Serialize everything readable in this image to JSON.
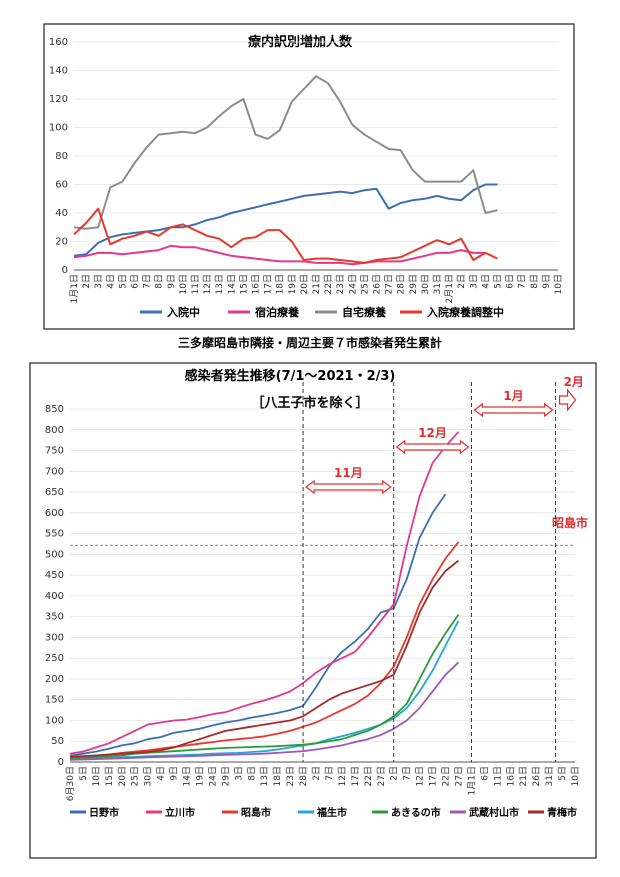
{
  "caption": "三多摩昭島市隣接・周辺主要７市感染者発生累計",
  "chart_data": [
    {
      "type": "line",
      "title": "療内訳別増加人数",
      "ylim": [
        0,
        160
      ],
      "yticks": [
        0,
        20,
        40,
        60,
        80,
        100,
        120,
        140,
        160
      ],
      "x": [
        "1月1日",
        "2日",
        "3日",
        "4日",
        "5日",
        "6日",
        "7日",
        "8日",
        "9日",
        "10日",
        "11日",
        "12日",
        "13日",
        "14日",
        "15日",
        "16日",
        "17日",
        "18日",
        "19日",
        "20日",
        "21日",
        "22日",
        "23日",
        "24日",
        "25日",
        "26日",
        "27日",
        "28日",
        "29日",
        "30日",
        "31日",
        "2月1日",
        "2日",
        "3日",
        "4日",
        "5日",
        "6日",
        "7日",
        "8日",
        "9日",
        "10日"
      ],
      "series": [
        {
          "name": "入院中",
          "color": "#3a6fb5",
          "values": [
            10,
            11,
            19,
            23,
            25,
            26,
            27,
            28,
            30,
            30,
            32,
            35,
            37,
            40,
            42,
            44,
            46,
            48,
            50,
            52,
            53,
            54,
            55,
            54,
            56,
            57,
            43,
            47,
            49,
            50,
            52,
            50,
            49,
            56,
            60,
            60,
            null,
            null,
            null,
            null,
            null
          ]
        },
        {
          "name": "宿泊療養",
          "color": "#e4388a",
          "values": [
            9,
            10,
            12,
            12,
            11,
            12,
            13,
            14,
            17,
            16,
            16,
            14,
            12,
            10,
            9,
            8,
            7,
            6,
            6,
            6,
            5,
            5,
            5,
            4,
            5,
            6,
            6,
            6,
            8,
            10,
            12,
            12,
            14,
            12,
            12,
            null,
            null,
            null,
            null,
            null,
            null
          ]
        },
        {
          "name": "自宅療養",
          "color": "#8c8c8c",
          "values": [
            30,
            29,
            30,
            58,
            62,
            75,
            86,
            95,
            96,
            97,
            96,
            100,
            108,
            115,
            120,
            95,
            92,
            98,
            118,
            127,
            136,
            131,
            118,
            102,
            95,
            90,
            85,
            84,
            70,
            62,
            62,
            62,
            62,
            70,
            40,
            42,
            null,
            null,
            null,
            null,
            null
          ]
        },
        {
          "name": "入院療養調整中",
          "color": "#e8372b",
          "values": [
            25,
            33,
            43,
            18,
            22,
            24,
            27,
            24,
            30,
            32,
            28,
            24,
            22,
            16,
            22,
            23,
            28,
            28,
            20,
            7,
            8,
            8,
            7,
            6,
            5,
            7,
            8,
            9,
            13,
            17,
            21,
            18,
            22,
            7,
            12,
            8,
            null,
            null,
            null,
            null,
            null
          ]
        }
      ]
    },
    {
      "type": "line",
      "title": "感染者発生推移(7/1～2021・2/3)",
      "subtitle": "［八王子市を除く］",
      "ylim": [
        0,
        850
      ],
      "yticks": [
        0,
        50,
        100,
        150,
        200,
        250,
        300,
        350,
        400,
        450,
        500,
        550,
        600,
        650,
        700,
        750,
        800,
        850
      ],
      "x": [
        "6月30日",
        "5日",
        "10日",
        "15日",
        "20日",
        "25日",
        "30日",
        "4日",
        "9日",
        "14日",
        "19日",
        "24日",
        "29日",
        "3日",
        "8日",
        "13日",
        "18日",
        "23日",
        "28日",
        "2日",
        "7日",
        "12日",
        "17日",
        "22日",
        "27日",
        "2日",
        "7日",
        "12日",
        "17日",
        "22日",
        "27日",
        "1月1日",
        "6日",
        "11日",
        "16日",
        "21日",
        "26日",
        "31日",
        "5日",
        "10日"
      ],
      "reference_line": {
        "value": 522,
        "label": "昭島市"
      },
      "periods": [
        "11月",
        "12月",
        "1月",
        "2月"
      ],
      "series": [
        {
          "name": "日野市",
          "color": "#3a6fb5",
          "values": [
            15,
            20,
            25,
            32,
            40,
            45,
            55,
            60,
            70,
            75,
            80,
            88,
            95,
            100,
            107,
            112,
            118,
            125,
            135,
            180,
            230,
            265,
            290,
            320,
            360,
            370,
            440,
            540,
            600,
            645,
            null,
            null,
            null,
            null,
            null,
            null,
            null,
            null,
            null,
            null
          ]
        },
        {
          "name": "立川市",
          "color": "#e4388a",
          "values": [
            20,
            25,
            35,
            45,
            60,
            75,
            90,
            95,
            100,
            102,
            108,
            115,
            120,
            130,
            140,
            148,
            158,
            170,
            190,
            215,
            235,
            250,
            265,
            300,
            340,
            380,
            520,
            640,
            720,
            760,
            795,
            null,
            null,
            null,
            null,
            null,
            null,
            null,
            null,
            null
          ]
        },
        {
          "name": "昭島市",
          "color": "#e8372b",
          "values": [
            10,
            12,
            15,
            18,
            22,
            25,
            28,
            32,
            36,
            40,
            44,
            48,
            52,
            55,
            58,
            62,
            68,
            75,
            85,
            95,
            110,
            125,
            140,
            160,
            190,
            230,
            300,
            380,
            440,
            490,
            530,
            null,
            null,
            null,
            null,
            null,
            null,
            null,
            null,
            null
          ]
        },
        {
          "name": "福生市",
          "color": "#27a6d6",
          "values": [
            8,
            8,
            10,
            10,
            12,
            12,
            14,
            15,
            16,
            17,
            18,
            20,
            21,
            22,
            24,
            26,
            30,
            35,
            40,
            45,
            55,
            62,
            70,
            80,
            90,
            105,
            130,
            170,
            220,
            280,
            340,
            null,
            null,
            null,
            null,
            null,
            null,
            null,
            null,
            null
          ]
        },
        {
          "name": "あきるの市",
          "color": "#2a9c3a",
          "values": [
            8,
            10,
            12,
            14,
            16,
            20,
            22,
            24,
            26,
            28,
            30,
            32,
            34,
            35,
            36,
            37,
            38,
            40,
            42,
            45,
            50,
            55,
            65,
            75,
            90,
            110,
            140,
            200,
            260,
            310,
            355,
            null,
            null,
            null,
            null,
            null,
            null,
            null,
            null,
            null
          ]
        },
        {
          "name": "武蔵村山市",
          "color": "#9b59b6",
          "values": [
            5,
            6,
            7,
            8,
            9,
            10,
            11,
            12,
            13,
            14,
            15,
            16,
            17,
            18,
            19,
            20,
            22,
            24,
            26,
            30,
            35,
            40,
            48,
            55,
            65,
            80,
            100,
            130,
            170,
            210,
            240,
            null,
            null,
            null,
            null,
            null,
            null,
            null,
            null,
            null
          ]
        },
        {
          "name": "青梅市",
          "color": "#a52a2a",
          "values": [
            12,
            14,
            16,
            18,
            20,
            22,
            24,
            28,
            35,
            45,
            55,
            65,
            75,
            80,
            85,
            90,
            95,
            100,
            110,
            130,
            150,
            165,
            175,
            185,
            195,
            210,
            280,
            360,
            420,
            460,
            485,
            null,
            null,
            null,
            null,
            null,
            null,
            null,
            null,
            null
          ]
        }
      ]
    }
  ]
}
